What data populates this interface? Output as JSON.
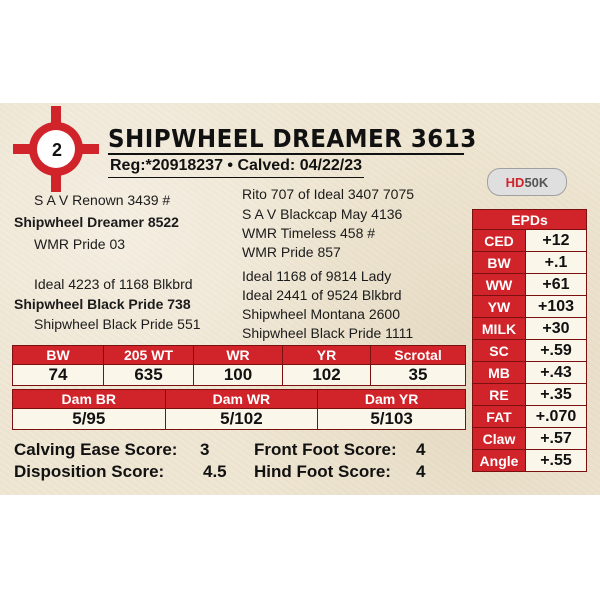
{
  "lot_number": "2",
  "name": "SHIPWHEEL DREAMER 3613",
  "registration": "Reg:*20918237 • Calved: 04/22/23",
  "logo": {
    "hd": "HD",
    "rest": "50K"
  },
  "pedigree_left": {
    "sire_sire": "S A V Renown 3439 #",
    "sire": "Shipwheel Dreamer 8522",
    "sire_dam": "WMR Pride 03",
    "dam_sire": "Ideal 4223 of 1168 Blkbrd",
    "dam": "Shipwheel Black Pride 738",
    "dam_dam": "Shipwheel Black Pride 551"
  },
  "pedigree_right": [
    "Rito 707 of Ideal 3407 7075",
    "S A V Blackcap May 4136",
    "WMR Timeless 458 #",
    "WMR Pride 857",
    "Ideal 1168 of 9814 Lady",
    "Ideal 2441 of 9524 Blkbrd",
    "Shipwheel Montana 2600",
    "Shipwheel Black Pride 1111"
  ],
  "performance": {
    "headers": [
      "BW",
      "205 WT",
      "WR",
      "YR",
      "Scrotal"
    ],
    "values": [
      "74",
      "635",
      "100",
      "102",
      "35"
    ]
  },
  "dam_stats": {
    "headers": [
      "Dam BR",
      "Dam WR",
      "Dam YR"
    ],
    "values": [
      "5/95",
      "5/102",
      "5/103"
    ]
  },
  "scores": {
    "calving_ease_label": "Calving Ease Score:",
    "calving_ease": "3",
    "front_foot_label": "Front Foot Score:",
    "front_foot": "4",
    "disposition_label": "Disposition Score:",
    "disposition": "4.5",
    "hind_foot_label": "Hind Foot Score:",
    "hind_foot": "4"
  },
  "epds": {
    "title": "EPDs",
    "rows": [
      {
        "label": "CED",
        "value": "+12"
      },
      {
        "label": "BW",
        "value": "+.1"
      },
      {
        "label": "WW",
        "value": "+61"
      },
      {
        "label": "YW",
        "value": "+103"
      },
      {
        "label": "MILK",
        "value": "+30"
      },
      {
        "label": "SC",
        "value": "+.59"
      },
      {
        "label": "MB",
        "value": "+.43"
      },
      {
        "label": "RE",
        "value": "+.35"
      },
      {
        "label": "FAT",
        "value": "+.070"
      },
      {
        "label": "Claw",
        "value": "+.57"
      },
      {
        "label": "Angle",
        "value": "+.55"
      }
    ]
  },
  "colors": {
    "accent_red": "#d0232a",
    "card_bg": "#efe6d2"
  }
}
